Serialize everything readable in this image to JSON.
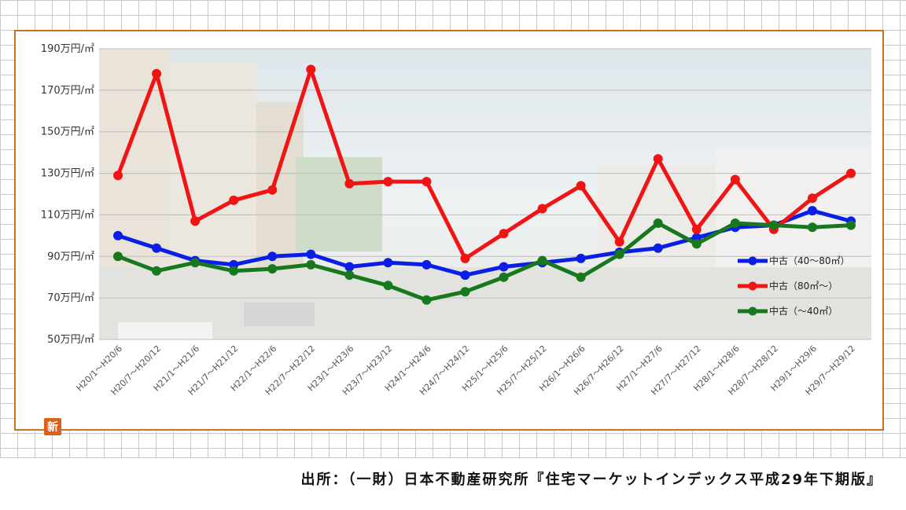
{
  "chart_data": {
    "type": "line",
    "categories": [
      "H20/1～H20/6",
      "H20/7～H20/12",
      "H21/1～H21/6",
      "H21/7～H21/12",
      "H22/1～H22/6",
      "H22/7～H22/12",
      "H23/1～H23/6",
      "H23/7～H23/12",
      "H24/1～H24/6",
      "H24/7～H24/12",
      "H25/1～H25/6",
      "H25/7～H25/12",
      "H26/1～H26/6",
      "H26/7～H26/12",
      "H27/1～H27/6",
      "H27/7～H27/12",
      "H28/1～H28/6",
      "H28/7～H28/12",
      "H29/1～H29/6",
      "H29/7～H29/12"
    ],
    "yticks": [
      "50万円/㎡",
      "70万円/㎡",
      "90万円/㎡",
      "110万円/㎡",
      "130万円/㎡",
      "150万円/㎡",
      "170万円/㎡",
      "190万円/㎡"
    ],
    "ylim": [
      50,
      190
    ],
    "grid": true,
    "legend_position": "right",
    "series": [
      {
        "name": "中古（40～80㎡）",
        "color": "#0a1ee6",
        "values": [
          100,
          94,
          88,
          86,
          90,
          91,
          85,
          87,
          86,
          81,
          85,
          87,
          89,
          92,
          94,
          99,
          104,
          105,
          112,
          107
        ]
      },
      {
        "name": "中古（80㎡～）",
        "color": "#f01414",
        "values": [
          129,
          178,
          107,
          117,
          122,
          180,
          125,
          126,
          126,
          89,
          101,
          113,
          124,
          97,
          137,
          103,
          127,
          103,
          118,
          130
        ]
      },
      {
        "name": "中古（～40㎡）",
        "color": "#18781e",
        "values": [
          90,
          83,
          87,
          83,
          84,
          86,
          81,
          76,
          69,
          73,
          80,
          88,
          80,
          91,
          106,
          96,
          106,
          105,
          104,
          105
        ]
      }
    ]
  },
  "badge_label": "新",
  "source": "出所：（一財）日本不動産研究所『住宅マーケットインデックス平成29年下期版』"
}
